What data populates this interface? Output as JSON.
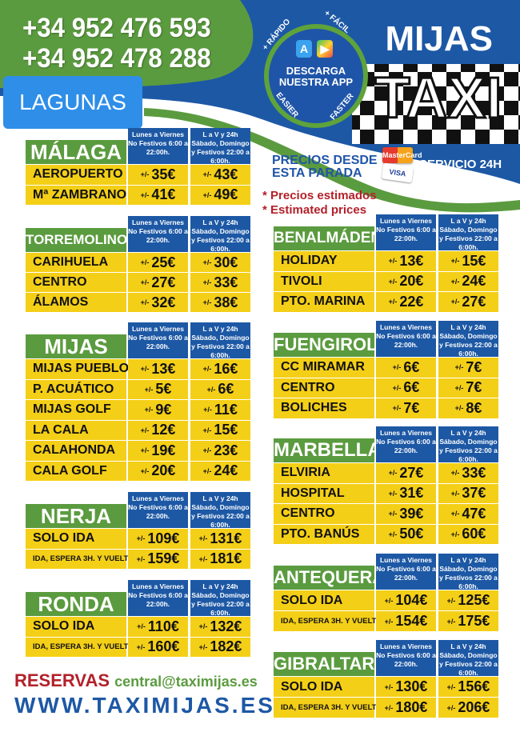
{
  "header": {
    "phones": [
      "+34 952 476 593",
      "+34 952 478 288"
    ],
    "stop_name": "LAGUNAS",
    "brand_line1": "MIJAS",
    "brand_line2": "TAXI",
    "app_badge": {
      "text": "DESCARGA NUESTRA APP",
      "ring_top_left": "+ RÁPIDO",
      "ring_top_right": "+ FÁCIL",
      "ring_bottom_left": "EASIER",
      "ring_bottom_right": "FASTER",
      "icons": [
        "app-store-icon",
        "google-play-icon"
      ]
    },
    "prices_from": "PRECIOS DESDE ESTA PARADA",
    "service": "SERVICIO 24H",
    "cards": [
      "MasterCard",
      "VISA"
    ],
    "note_es": "* Precios estimados",
    "note_en": "* Estimated prices"
  },
  "colors": {
    "green": "#5b9b3f",
    "blue": "#1d58a5",
    "yellow": "#f4cf17",
    "red": "#b3202a"
  },
  "column_headers": [
    "Lunes a Viernes No Festivos 6:00 a 22:00h.",
    "L a V y 24h Sábado, Domingo y Festivos 22:00 a 6:00h."
  ],
  "price_prefix": "+/-",
  "tables": [
    {
      "name": "MÁLAGA",
      "rows": [
        [
          "AEROPUERTO",
          "35€",
          "43€"
        ],
        [
          "Mª ZAMBRANO",
          "41€",
          "49€"
        ]
      ]
    },
    {
      "name": "TORREMOLINOS",
      "rows": [
        [
          "CARIHUELA",
          "25€",
          "30€"
        ],
        [
          "CENTRO",
          "27€",
          "33€"
        ],
        [
          "ÁLAMOS",
          "32€",
          "38€"
        ]
      ]
    },
    {
      "name": "MIJAS",
      "rows": [
        [
          "MIJAS PUEBLO",
          "13€",
          "16€"
        ],
        [
          "P. ACUÁTICO",
          "5€",
          "6€"
        ],
        [
          "MIJAS GOLF",
          "9€",
          "11€"
        ],
        [
          "LA CALA",
          "12€",
          "15€"
        ],
        [
          "CALAHONDA",
          "19€",
          "23€"
        ],
        [
          "CALA GOLF",
          "20€",
          "24€"
        ]
      ]
    },
    {
      "name": "NERJA",
      "rows": [
        [
          "SOLO IDA",
          "109€",
          "131€"
        ],
        [
          "IDA, ESPERA 3H. Y VUELTA",
          "159€",
          "181€"
        ]
      ]
    },
    {
      "name": "RONDA",
      "rows": [
        [
          "SOLO IDA",
          "110€",
          "132€"
        ],
        [
          "IDA, ESPERA 3H. Y VUELTA",
          "160€",
          "182€"
        ]
      ]
    },
    {
      "name": "BENALMÁDENA",
      "rows": [
        [
          "HOLIDAY",
          "13€",
          "15€"
        ],
        [
          "TIVOLI",
          "20€",
          "24€"
        ],
        [
          "PTO. MARINA",
          "22€",
          "27€"
        ]
      ]
    },
    {
      "name": "FUENGIROLA",
      "rows": [
        [
          "CC MIRAMAR",
          "6€",
          "7€"
        ],
        [
          "CENTRO",
          "6€",
          "7€"
        ],
        [
          "BOLICHES",
          "7€",
          "8€"
        ]
      ]
    },
    {
      "name": "MARBELLA",
      "rows": [
        [
          "ELVIRIA",
          "27€",
          "33€"
        ],
        [
          "HOSPITAL",
          "31€",
          "37€"
        ],
        [
          "CENTRO",
          "39€",
          "47€"
        ],
        [
          "PTO. BANÚS",
          "50€",
          "60€"
        ]
      ]
    },
    {
      "name": "ANTEQUERA",
      "rows": [
        [
          "SOLO IDA",
          "104€",
          "125€"
        ],
        [
          "IDA, ESPERA 3H. Y VUELTA",
          "154€",
          "175€"
        ]
      ]
    },
    {
      "name": "GIBRALTAR",
      "rows": [
        [
          "SOLO IDA",
          "130€",
          "156€"
        ],
        [
          "IDA, ESPERA 3H. Y VUELTA",
          "180€",
          "206€"
        ]
      ]
    }
  ],
  "footer": {
    "reservas_label": "RESERVAS",
    "email": "central@taximijas.es",
    "website": "WWW.TAXIMIJAS.ES"
  }
}
